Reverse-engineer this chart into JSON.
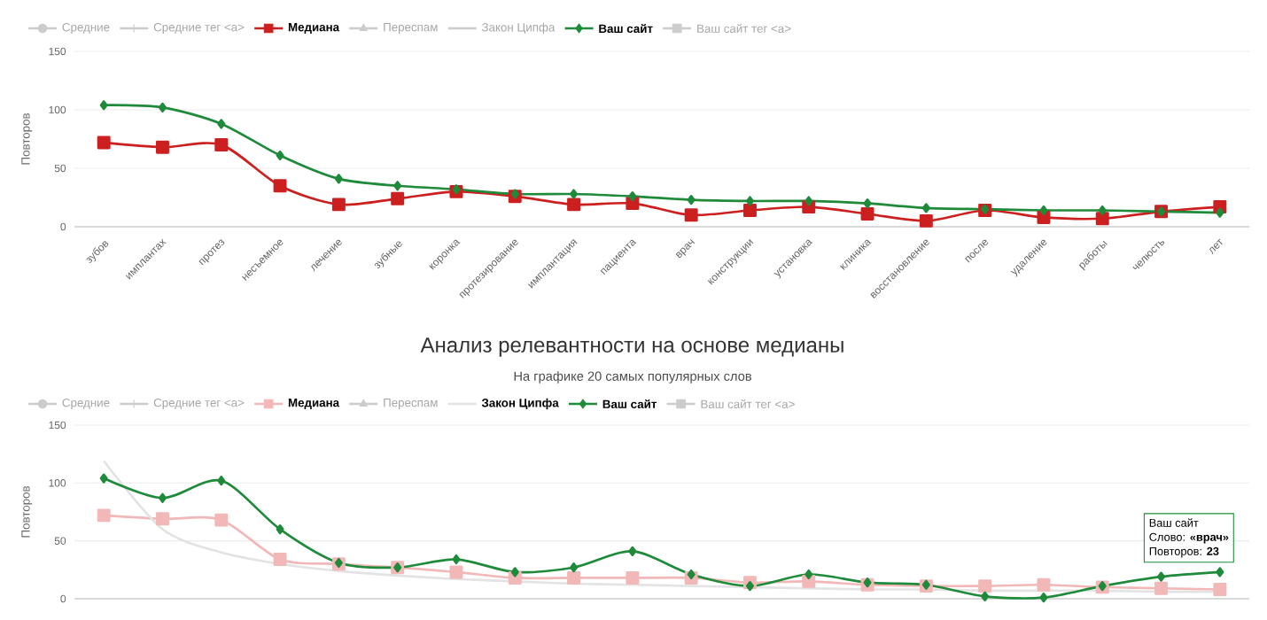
{
  "chart_data": [
    {
      "type": "line",
      "ylabel": "Повторов",
      "ylim": [
        0,
        150
      ],
      "yticks": [
        0,
        50,
        100,
        150
      ],
      "grid": "y",
      "legend": "top",
      "line_style": "solid",
      "categories": [
        "зубов",
        "имплантах",
        "протез",
        "несъемное",
        "лечение",
        "зубные",
        "коронка",
        "протезирование",
        "имплантация",
        "пациента",
        "врач",
        "конструкции",
        "установка",
        "клиника",
        "восстановление",
        "после",
        "удаление",
        "работы",
        "челюсть",
        "лет"
      ],
      "series": [
        {
          "name": "Средние",
          "color": "#cccccc",
          "marker": "circle",
          "values": [
            null,
            null,
            null,
            null,
            null,
            null,
            null,
            null,
            null,
            null,
            null,
            null,
            null,
            null,
            null,
            null,
            null,
            null,
            null,
            null
          ]
        },
        {
          "name": "Средние тег <a>",
          "color": "#cccccc",
          "marker": "cross",
          "values": [
            null,
            null,
            null,
            null,
            null,
            null,
            null,
            null,
            null,
            null,
            null,
            null,
            null,
            null,
            null,
            null,
            null,
            null,
            null,
            null
          ]
        },
        {
          "name": "Медиана",
          "color": "#cc1f1f",
          "marker": "square",
          "values": [
            72,
            68,
            70,
            35,
            19,
            24,
            30,
            26,
            19,
            20,
            10,
            14,
            17,
            11,
            5,
            14,
            8,
            7,
            13,
            17
          ]
        },
        {
          "name": "Переспам",
          "color": "#cccccc",
          "marker": "triangle",
          "values": [
            null,
            null,
            null,
            null,
            null,
            null,
            null,
            null,
            null,
            null,
            null,
            null,
            null,
            null,
            null,
            null,
            null,
            null,
            null,
            null
          ]
        },
        {
          "name": "Закон Ципфа",
          "color": "#cccccc",
          "marker": "none",
          "values": [
            null,
            null,
            null,
            null,
            null,
            null,
            null,
            null,
            null,
            null,
            null,
            null,
            null,
            null,
            null,
            null,
            null,
            null,
            null,
            null
          ]
        },
        {
          "name": "Ваш сайт",
          "color": "#1f8a3a",
          "marker": "diamond",
          "values": [
            104,
            102,
            88,
            61,
            41,
            35,
            32,
            28,
            28,
            26,
            23,
            22,
            22,
            20,
            16,
            15,
            14,
            14,
            13,
            12
          ]
        },
        {
          "name": "Ваш сайт тег <a>",
          "color": "#cccccc",
          "marker": "square",
          "values": [
            null,
            null,
            null,
            null,
            null,
            null,
            null,
            null,
            null,
            null,
            null,
            null,
            null,
            null,
            null,
            null,
            null,
            null,
            null,
            null
          ]
        }
      ]
    },
    {
      "type": "line",
      "title": "Анализ релевантности на основе медианы",
      "subtitle": "На графике 20 самых популярных слов",
      "ylabel": "Повторов",
      "ylim": [
        0,
        150
      ],
      "yticks": [
        0,
        50,
        100,
        150
      ],
      "grid": "y",
      "legend": "top",
      "line_style": "solid",
      "categories": [
        null,
        null,
        null,
        null,
        null,
        null,
        null,
        null,
        null,
        null,
        null,
        null,
        null,
        null,
        null,
        null,
        null,
        null,
        null,
        null
      ],
      "annotations": [
        "Ваш сайт",
        "Слово: **«врач»**",
        "Повторов: **23**"
      ],
      "series": [
        {
          "name": "Средние",
          "color": "#cccccc",
          "marker": "circle",
          "values": [
            null,
            null,
            null,
            null,
            null,
            null,
            null,
            null,
            null,
            null,
            null,
            null,
            null,
            null,
            null,
            null,
            null,
            null,
            null,
            null
          ]
        },
        {
          "name": "Средние тег <a>",
          "color": "#cccccc",
          "marker": "cross",
          "values": [
            null,
            null,
            null,
            null,
            null,
            null,
            null,
            null,
            null,
            null,
            null,
            null,
            null,
            null,
            null,
            null,
            null,
            null,
            null,
            null
          ]
        },
        {
          "name": "Медиана",
          "color": "#f2b8b8",
          "marker": "square",
          "values": [
            72,
            69,
            68,
            34,
            30,
            27,
            23,
            18,
            18,
            18,
            18,
            14,
            15,
            12,
            11,
            11,
            12,
            10,
            9,
            8
          ]
        },
        {
          "name": "Переспам",
          "color": "#cccccc",
          "marker": "triangle",
          "values": [
            null,
            null,
            null,
            null,
            null,
            null,
            null,
            null,
            null,
            null,
            null,
            null,
            null,
            null,
            null,
            null,
            null,
            null,
            null,
            null
          ]
        },
        {
          "name": "Закон Ципфа",
          "color": "#e3e3e3",
          "marker": "none",
          "values": [
            119,
            60,
            40,
            30,
            24,
            20,
            17,
            15,
            13,
            12,
            11,
            10,
            9,
            8,
            8,
            7,
            7,
            7,
            6,
            6
          ]
        },
        {
          "name": "Ваш сайт",
          "color": "#1f8a3a",
          "marker": "diamond",
          "values": [
            104,
            87,
            102,
            60,
            31,
            27,
            34,
            23,
            27,
            41,
            21,
            11,
            21,
            14,
            12,
            2,
            1,
            11,
            19,
            23
          ]
        },
        {
          "name": "Ваш сайт тег <a>",
          "color": "#cccccc",
          "marker": "square",
          "values": [
            null,
            null,
            null,
            null,
            null,
            null,
            null,
            null,
            null,
            null,
            null,
            null,
            null,
            null,
            null,
            null,
            null,
            null,
            null,
            null
          ]
        }
      ]
    }
  ]
}
